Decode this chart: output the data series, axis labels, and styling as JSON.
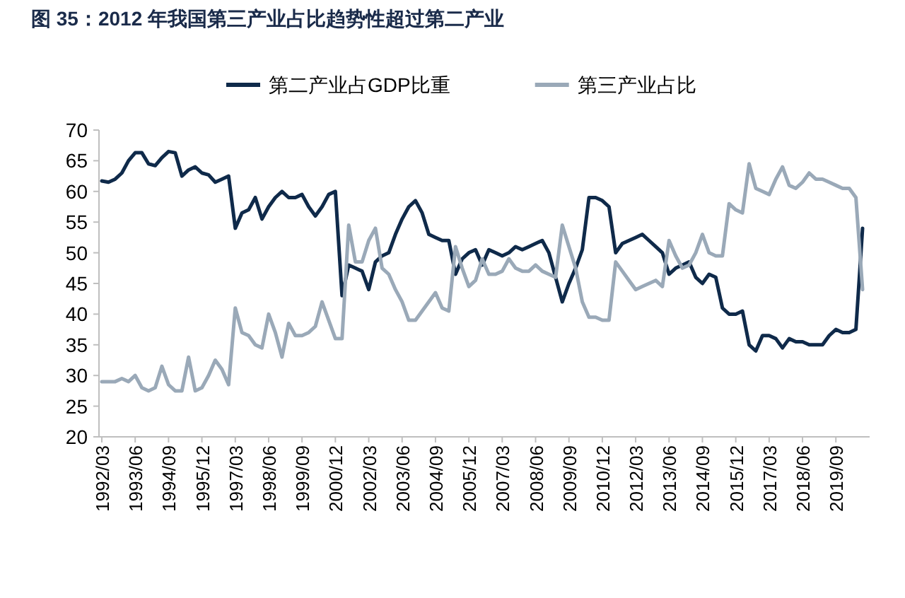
{
  "chart_data": {
    "type": "line",
    "title": "图 35：2012 年我国第三产业占比趋势性超过第二产业",
    "categories": [
      "1992/03",
      null,
      null,
      null,
      null,
      "1993/06",
      null,
      null,
      null,
      null,
      "1994/09",
      null,
      null,
      null,
      null,
      "1995/12",
      null,
      null,
      null,
      null,
      "1997/03",
      null,
      null,
      null,
      null,
      "1998/06",
      null,
      null,
      null,
      null,
      "1999/09",
      null,
      null,
      null,
      null,
      "2000/12",
      null,
      null,
      null,
      null,
      "2002/03",
      null,
      null,
      null,
      null,
      "2003/06",
      null,
      null,
      null,
      null,
      "2004/09",
      null,
      null,
      null,
      null,
      "2005/12",
      null,
      null,
      null,
      null,
      "2007/03",
      null,
      null,
      null,
      null,
      "2008/06",
      null,
      null,
      null,
      null,
      "2009/09",
      null,
      null,
      null,
      null,
      "2010/12",
      null,
      null,
      null,
      null,
      "2012/03",
      null,
      null,
      null,
      null,
      "2013/06",
      null,
      null,
      null,
      null,
      "2014/09",
      null,
      null,
      null,
      null,
      "2015/12",
      null,
      null,
      null,
      null,
      "2017/03",
      null,
      null,
      null,
      null,
      "2018/06",
      null,
      null,
      null,
      null,
      "2019/09",
      null,
      null,
      null,
      null
    ],
    "series": [
      {
        "name": "第二产业占GDP比重",
        "color": "#0f2a4a",
        "values": [
          61.7,
          61.5,
          62,
          63,
          65,
          66.3,
          66.3,
          64.5,
          64.2,
          65.5,
          66.5,
          66.3,
          62.5,
          63.5,
          64,
          63,
          62.7,
          61.5,
          62,
          62.5,
          54,
          56.5,
          57,
          59,
          55.5,
          57.5,
          59,
          60,
          59,
          59,
          59.5,
          57.5,
          56,
          57.5,
          59.5,
          60,
          43,
          48,
          47.5,
          47,
          44,
          48.5,
          49.5,
          50,
          53,
          55.5,
          57.5,
          58.5,
          56.5,
          53,
          52.5,
          52,
          52,
          46.5,
          49,
          50,
          50.5,
          48,
          50.5,
          50,
          49.5,
          50,
          51,
          50.5,
          51,
          51.5,
          52,
          50,
          46,
          42,
          45,
          47.5,
          50.5,
          59,
          59,
          58.5,
          57.5,
          50,
          51.5,
          52,
          52.5,
          53,
          52,
          51,
          50,
          46.5,
          47.5,
          48,
          48.5,
          46,
          45,
          46.5,
          46,
          41,
          40,
          40,
          40.5,
          35,
          34,
          36.5,
          36.5,
          36,
          34.5,
          36,
          35.5,
          35.5,
          35,
          35,
          35,
          36.5,
          37.5,
          37,
          37,
          37.5,
          54
        ]
      },
      {
        "name": "第三产业占比",
        "color": "#9aa9b8",
        "values": [
          29,
          29,
          29,
          29.5,
          29,
          30,
          28,
          27.5,
          28,
          31.5,
          28.5,
          27.5,
          27.5,
          33,
          27.5,
          28,
          30,
          32.5,
          31,
          28.5,
          41,
          37,
          36.5,
          35,
          34.5,
          40,
          37,
          33,
          38.5,
          36.5,
          36.5,
          37,
          38,
          42,
          39,
          36,
          36,
          54.5,
          48.5,
          48.5,
          52,
          54,
          47.5,
          46.5,
          44,
          42,
          39,
          39,
          40.5,
          42,
          43.5,
          41,
          40.5,
          51,
          47.5,
          44.5,
          45.5,
          49,
          46.5,
          46.5,
          47,
          49,
          47.5,
          47,
          47,
          48,
          47,
          46.5,
          46,
          54.5,
          51,
          47.5,
          42,
          39.5,
          39.5,
          39,
          39,
          48.5,
          47,
          45.5,
          44,
          44.5,
          45,
          45.5,
          44.5,
          52,
          49.5,
          47.5,
          48,
          50,
          53,
          50,
          49.5,
          49.5,
          58,
          57,
          56.5,
          64.5,
          60.5,
          60,
          59.5,
          62,
          64,
          61,
          60.5,
          61.5,
          63,
          62,
          62,
          61.5,
          61,
          60.5,
          60.5,
          59,
          44
        ]
      }
    ],
    "ylim": [
      20,
      70
    ],
    "yticks": [
      20,
      25,
      30,
      35,
      40,
      45,
      50,
      55,
      60,
      65,
      70
    ],
    "legend": "top"
  }
}
